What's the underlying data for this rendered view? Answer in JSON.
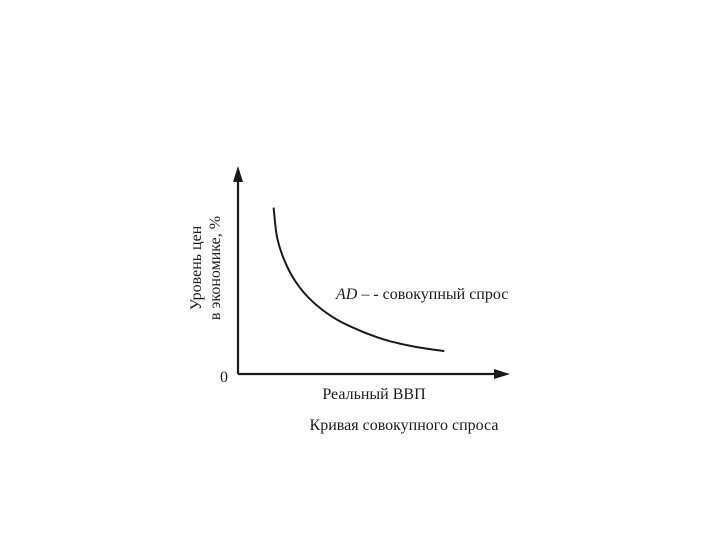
{
  "chart_data": {
    "type": "line",
    "title": "",
    "caption": "Кривая совокупного спроса",
    "xlabel": "Реальный ВВП",
    "ylabel_line1": "Уровень цен",
    "ylabel_line2": "в экономике, %",
    "origin_label": "0",
    "curve_label_italic": "AD",
    "curve_label_rest": " – - совокупный спрос",
    "grid": false,
    "legend": "none",
    "series": [
      {
        "name": "AD",
        "x": [
          3.8,
          4.2,
          5.2,
          6.6,
          8.4,
          10.6,
          13.2,
          16.0,
          19.0,
          22.0
        ],
        "y": [
          16.0,
          13.0,
          10.4,
          8.3,
          6.6,
          5.2,
          4.1,
          3.2,
          2.6,
          2.2
        ]
      }
    ],
    "xlim": [
      0,
      29
    ],
    "ylim": [
      0,
      20
    ],
    "colors": {
      "ink": "#1a1a1a"
    }
  }
}
